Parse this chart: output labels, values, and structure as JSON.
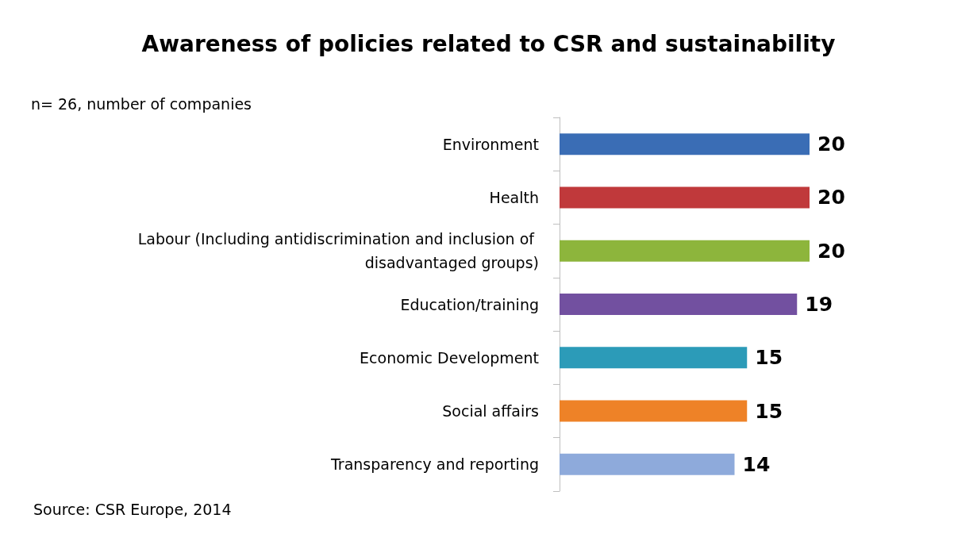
{
  "chart_data": {
    "type": "bar",
    "orientation": "horizontal",
    "title": "Awareness of policies related to CSR and sustainability",
    "subtitle": "n= 26, number of companies",
    "annotations": [
      "Source: CSR Europe, 2014"
    ],
    "categories": [
      "Environment",
      "Health",
      "Labour (Including antidiscrimination and inclusion of disadvantaged groups)",
      "Education/training",
      "Economic Development",
      "Social affairs",
      "Transparency and reporting"
    ],
    "values": [
      20,
      20,
      20,
      19,
      15,
      15,
      14
    ],
    "colors": [
      "#3a6db5",
      "#c0393b",
      "#8db53c",
      "#7250a0",
      "#2c9bb8",
      "#ee8227",
      "#8eaadb"
    ],
    "data_labels": true
  }
}
